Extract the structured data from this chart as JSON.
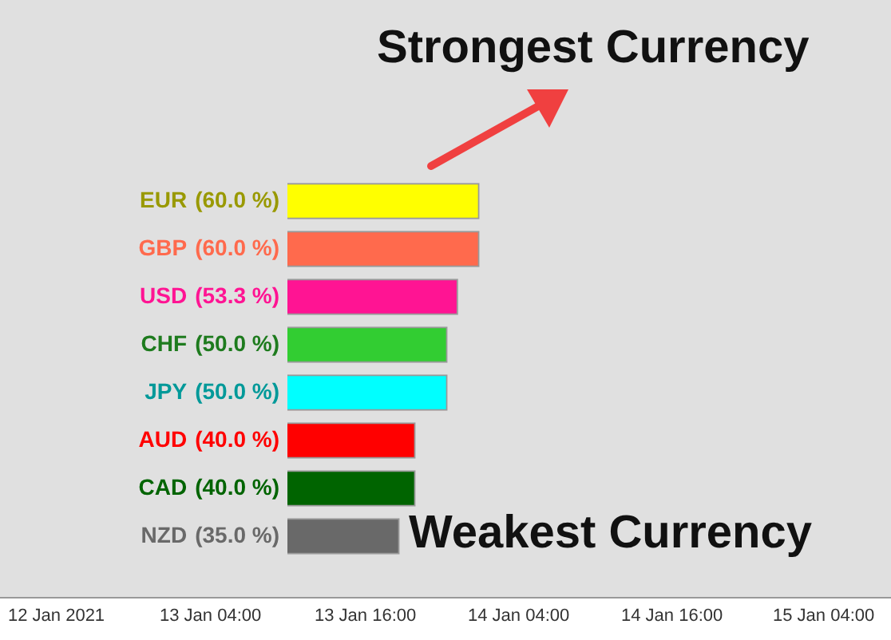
{
  "chart_data": {
    "type": "bar",
    "orientation": "horizontal",
    "categories": [
      "EUR",
      "GBP",
      "USD",
      "CHF",
      "JPY",
      "AUD",
      "CAD",
      "NZD"
    ],
    "values": [
      60,
      60,
      53.3,
      50,
      50,
      40,
      40,
      35
    ],
    "value_labels": [
      "(60.0 %)",
      "(60.0 %)",
      "(53.3 %)",
      "(50.0 %)",
      "(50.0 %)",
      "(40.0 %)",
      "(40.0 %)",
      "(35.0 %)"
    ],
    "colors": [
      "#ffff00",
      "#ff6a4d",
      "#ff1493",
      "#32cd32",
      "#00ffff",
      "#ff0000",
      "#006400",
      "#696969"
    ],
    "annotations": [
      "Strongest Currency",
      "Weakest Currency",
      "12 Jan 2021",
      "13 Jan 04:00",
      "13 Jan 16:00",
      "14 Jan 04:00",
      "14 Jan 16:00",
      "15 Jan 04:00"
    ],
    "legend": false,
    "grid": false
  }
}
